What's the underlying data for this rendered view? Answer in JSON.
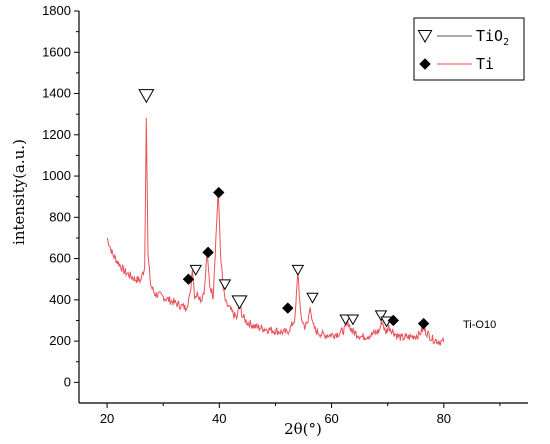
{
  "chart_data": {
    "type": "line",
    "xlabel": "2θ(°)",
    "ylabel": "intensity(a.u.)",
    "xlim": [
      15,
      95
    ],
    "ylim": [
      -100,
      1800
    ],
    "x_ticks": [
      20,
      40,
      60,
      80
    ],
    "y_ticks": [
      0,
      200,
      400,
      600,
      800,
      1000,
      1200,
      1400,
      1600,
      1800
    ],
    "grid": false,
    "legend_position": "top-right",
    "legend": [
      {
        "symbol": "open-triangle-down",
        "text": "TiO",
        "sub": "2",
        "line_color": "#555555"
      },
      {
        "symbol": "filled-diamond",
        "text": "Ti",
        "sub": "",
        "line_color": "#e8505a"
      }
    ],
    "annotation": "Ti-O10",
    "series": [
      {
        "color": "#e8505a",
        "x": [
          20,
          21,
          22,
          23,
          24,
          25,
          26,
          26.7,
          27.0,
          27.3,
          27.8,
          28.5,
          29.5,
          31,
          32.5,
          34,
          34.8,
          35.2,
          35.6,
          36.2,
          36.8,
          37.4,
          37.8,
          38.3,
          38.9,
          39.4,
          39.8,
          40.2,
          40.7,
          41.2,
          41.8,
          42.5,
          43.2,
          43.6,
          44.1,
          45,
          46.5,
          48,
          50,
          52,
          52.8,
          53.5,
          54.0,
          54.5,
          55.2,
          55.8,
          56.2,
          56.6,
          57.2,
          58.5,
          60,
          61.5,
          62.5,
          63.0,
          63.6,
          64.2,
          65.5,
          67,
          68.5,
          69.0,
          69.6,
          70.2,
          70.8,
          71.5,
          72.5,
          74,
          75.5,
          76.3,
          77,
          78,
          79,
          80
        ],
        "y": [
          700,
          620,
          580,
          540,
          520,
          500,
          495,
          560,
          1300,
          610,
          470,
          430,
          420,
          400,
          380,
          360,
          420,
          560,
          420,
          430,
          400,
          460,
          620,
          470,
          420,
          700,
          930,
          640,
          450,
          380,
          360,
          330,
          310,
          400,
          320,
          290,
          270,
          260,
          250,
          240,
          270,
          310,
          540,
          320,
          270,
          290,
          380,
          280,
          250,
          230,
          230,
          240,
          260,
          290,
          250,
          240,
          220,
          230,
          250,
          300,
          240,
          270,
          250,
          230,
          215,
          220,
          230,
          260,
          240,
          210,
          200,
          195
        ]
      }
    ],
    "markers": [
      {
        "type": "open-triangle-down",
        "x": 27.0,
        "y": 1390
      },
      {
        "type": "open-triangle-down",
        "x": 35.8,
        "y": 545
      },
      {
        "type": "open-triangle-down",
        "x": 41.0,
        "y": 475
      },
      {
        "type": "open-triangle-down",
        "x": 43.6,
        "y": 390
      },
      {
        "type": "open-triangle-down",
        "x": 54.0,
        "y": 545
      },
      {
        "type": "open-triangle-down",
        "x": 56.6,
        "y": 410
      },
      {
        "type": "open-triangle-down",
        "x": 62.5,
        "y": 305
      },
      {
        "type": "open-triangle-down",
        "x": 63.8,
        "y": 305
      },
      {
        "type": "open-triangle-down",
        "x": 68.8,
        "y": 325
      },
      {
        "type": "open-triangle-down",
        "x": 69.8,
        "y": 295
      },
      {
        "type": "filled-diamond",
        "x": 34.5,
        "y": 500
      },
      {
        "type": "filled-diamond",
        "x": 38.0,
        "y": 630
      },
      {
        "type": "filled-diamond",
        "x": 39.9,
        "y": 920
      },
      {
        "type": "filled-diamond",
        "x": 52.2,
        "y": 360
      },
      {
        "type": "filled-diamond",
        "x": 71.0,
        "y": 300
      },
      {
        "type": "filled-diamond",
        "x": 76.4,
        "y": 285
      }
    ]
  }
}
